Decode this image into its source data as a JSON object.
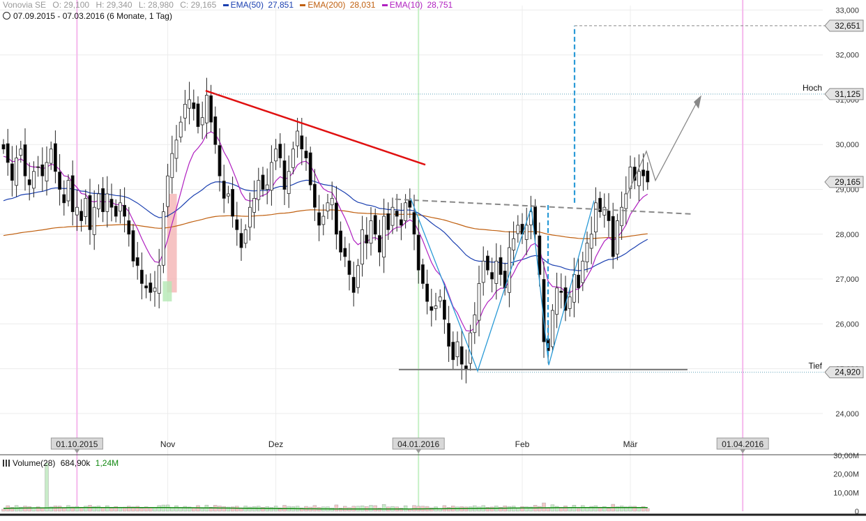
{
  "header": {
    "symbol": "Vonovia SE",
    "open": "O: 29,100",
    "high": "H: 29,340",
    "low": "L: 28,980",
    "close": "C: 29,165",
    "ema50_label": "EMA(50)",
    "ema50_value": "27,851",
    "ema200_label": "EMA(200)",
    "ema200_value": "28,031",
    "ema10_label": "EMA(10)",
    "ema10_value": "28,751",
    "range": "07.09.2015 - 07.03.2016 (6 Monate, 1 Tag)"
  },
  "volume_legend": {
    "label": "Volume(28)",
    "value1": "684,90k",
    "value2": "1,24M"
  },
  "colors": {
    "up_candle": "#ffffff",
    "down_candle": "#000000",
    "ema50": "#1a3fb0",
    "ema200": "#c06010",
    "ema10": "#b020c0",
    "trend_red": "#e01010",
    "pattern_blue": "#2a9ad6",
    "neckline_gray": "#888888",
    "support_gray": "#777777",
    "vol_up": "#c9ecc9",
    "vol_down": "#f4c8c8",
    "vol_avg": "#118811"
  },
  "chart_data": {
    "type": "candlestick",
    "title": "Vonovia SE",
    "x_range": [
      "2015-09-07",
      "2016-03-07"
    ],
    "ylim": [
      23.5,
      33.1
    ],
    "y_ticks": [
      "24,000",
      "25,000",
      "26,000",
      "27,000",
      "28,000",
      "29,000",
      "30,000",
      "31,000",
      "32,000",
      "33,000"
    ],
    "x_ticks": [
      {
        "label": "01.10.2015",
        "boxed": true
      },
      {
        "label": "Nov",
        "boxed": false
      },
      {
        "label": "Dez",
        "boxed": false
      },
      {
        "label": "04.01.2016",
        "boxed": true
      },
      {
        "label": "Feb",
        "boxed": false
      },
      {
        "label": "Mär",
        "boxed": false
      },
      {
        "label": "01.04.2016",
        "boxed": true
      }
    ],
    "price_tags": [
      {
        "label": "",
        "value": "32,651"
      },
      {
        "label": "Hoch",
        "value": "31,125"
      },
      {
        "label": "",
        "value": "29,165"
      },
      {
        "label": "Tief",
        "value": "24,920"
      }
    ],
    "closes": [
      29.9,
      29.6,
      29.2,
      29.7,
      29.9,
      29.3,
      29.1,
      29.4,
      29.5,
      29.3,
      29.6,
      29.9,
      29.4,
      29.0,
      28.7,
      29.2,
      28.5,
      28.6,
      28.3,
      28.8,
      28.1,
      28.6,
      28.9,
      28.5,
      28.9,
      28.6,
      28.4,
      28.7,
      28.4,
      28.0,
      27.4,
      27.3,
      26.9,
      26.8,
      26.7,
      26.8,
      27.3,
      28.5,
      29.3,
      29.8,
      30.1,
      30.5,
      30.9,
      31.0,
      30.8,
      30.4,
      30.6,
      31.1,
      30.5,
      30.0,
      29.3,
      28.8,
      28.9,
      28.4,
      28.1,
      27.7,
      28.1,
      28.6,
      28.8,
      29.2,
      29.0,
      29.1,
      29.6,
      29.9,
      29.7,
      29.0,
      29.4,
      29.9,
      30.3,
      29.9,
      29.7,
      29.1,
      28.6,
      28.2,
      28.4,
      28.7,
      28.8,
      28.0,
      27.6,
      27.5,
      27.1,
      26.7,
      27.3,
      28.1,
      27.8,
      28.3,
      28.0,
      27.6,
      28.4,
      28.1,
      28.6,
      28.4,
      28.2,
      28.7,
      28.6,
      28.0,
      27.2,
      26.9,
      26.5,
      26.3,
      26.4,
      26.6,
      26.1,
      25.5,
      25.2,
      25.6,
      25.1,
      25.0,
      25.8,
      26.2,
      26.9,
      27.4,
      27.2,
      27.0,
      27.4,
      27.1,
      26.8,
      27.7,
      27.9,
      28.2,
      28.0,
      28.2,
      28.5,
      28.0,
      27.1,
      25.6,
      25.4,
      26.3,
      26.8,
      26.7,
      26.3,
      26.6,
      27.1,
      26.8,
      27.4,
      27.8,
      28.0,
      28.7,
      28.5,
      28.6,
      28.3,
      27.5,
      28.3,
      28.6,
      28.9,
      29.5,
      29.2,
      29.4,
      29.3,
      29.165
    ],
    "ema_series": [
      {
        "name": "EMA(50)",
        "color": "ema50"
      },
      {
        "name": "EMA(200)",
        "color": "ema200"
      },
      {
        "name": "EMA(10)",
        "color": "ema10"
      }
    ],
    "volume": {
      "label": "Volume(28)",
      "ylim": [
        0,
        30
      ],
      "y_ticks": [
        "0",
        "10,00M",
        "20,00M",
        "30,00M"
      ],
      "spike_value": 26
    },
    "grid": true,
    "legend": "top-left"
  }
}
